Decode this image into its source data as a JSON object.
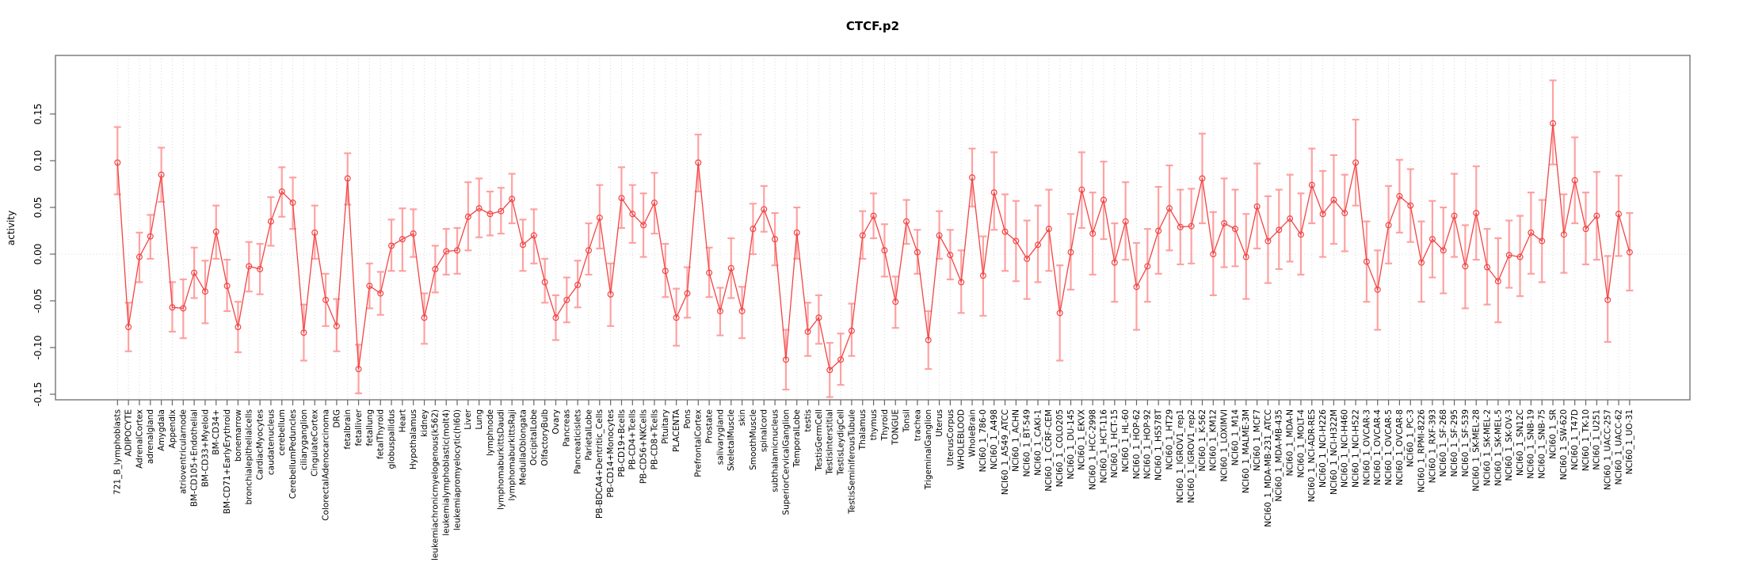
{
  "page": {
    "title": "CTCF.p2"
  },
  "chart_data": {
    "type": "line",
    "subtype": "points-with-error-bars",
    "title": "CTCF.p2",
    "xlabel": "",
    "ylabel": "activity",
    "legend": "none",
    "grid": "vertical dotted line at every category; dotted horizontal line at y=0",
    "ylim": [
      -0.156,
      0.213
    ],
    "yticks": [
      -0.15,
      -0.1,
      -0.05,
      0.0,
      0.05,
      0.1,
      0.15
    ],
    "ytick_labels": [
      "-0.15",
      "-0.10",
      "-0.05",
      "0.00",
      "0.05",
      "0.10",
      "0.15"
    ],
    "series_color": "#f24444",
    "errorbar_color": "#ff9999",
    "grid_color": "#d8d8d8",
    "box_color": "#7f7f7f",
    "categories": [
      "721_B_lymphoblasts",
      "ADIPOCYTE",
      "AdrenalCortex",
      "adrenalgland",
      "Amygdala",
      "Appendix",
      "atrioventricularnode",
      "BM-CD105+Endothelial",
      "BM-CD33+Myeloid",
      "BM-CD34+",
      "BM-CD71+EarlyErythroid",
      "bonemarrow",
      "bronchialepithelialcells",
      "CardiacMyocytes",
      "caudatenucleus",
      "cerebellum",
      "CerebellumPeduncles",
      "ciliaryganglion",
      "CingulateCortex",
      "ColorectalAdenocarcinoma",
      "DRG",
      "fetalbrain",
      "fetalliver",
      "fetallung",
      "fetalThyroid",
      "globuspallidus",
      "Heart",
      "Hypothalamus",
      "kidney",
      "leukemiachronicmyelogenous(k562)",
      "leukemialymphoblastic(molt4)",
      "leukemiapromyelocytic(hl60)",
      "Liver",
      "Lung",
      "lymphnode",
      "lymphomaburkittsDaudi",
      "lymphomaburkittsRaji",
      "MedullaOblongata",
      "OccipitalLobe",
      "OlfactoryBulb",
      "Ovary",
      "Pancreas",
      "Pancreaticislets",
      "ParietalLobe",
      "PB-BDCA4+Dentritic_Cells",
      "PB-CD14+Monocytes",
      "PB-CD19+Bcells",
      "PB-CD4+Tcells",
      "PB-CD56+NKCells",
      "PB-CD8+Tcells",
      "Pituitary",
      "PLACENTA",
      "Pons",
      "PrefrontalCortex",
      "Prostate",
      "salivarygland",
      "SkeletalMuscle",
      "skin",
      "SmoothMuscle",
      "spinalcord",
      "subthalamicnucleus",
      "SuperiorCervicalGanglion",
      "TemporalLobe",
      "testis",
      "TestisGermCell",
      "TestisInterstitial",
      "TestisLeydigCell",
      "TestisSeminiferousTubule",
      "Thalamus",
      "thymus",
      "Thyroid",
      "TONGUE",
      "Tonsil",
      "trachea",
      "TrigeminalGanglion",
      "Uterus",
      "UterusCorpus",
      "WHOLEBLOOD",
      "WholeBrain",
      "NCI60_1_786-0",
      "NCI60_1_A498",
      "NCI60_1_A549_ATCC",
      "NCI60_1_ACHN",
      "NCI60_1_BT-549",
      "NCI60_1_CAKI-1",
      "NCI60_1_CCRF-CEM",
      "NCI60_1_COLO205",
      "NCI60_1_DU-145",
      "NCI60_1_EKVX",
      "NCI60_1_HCC-2998",
      "NCI60_1_HCT-116",
      "NCI60_1_HCT-15",
      "NCI60_1_HL-60",
      "NCI60_1_HOP-62",
      "NCI60_1_HOP-92",
      "NCI60_1_HS578T",
      "NCI60_1_HT29",
      "NCI60_1_IGROV1_rep1",
      "NCI60_1_IGROV1_rep2",
      "NCI60_1_K-562",
      "NCI60_1_KM12",
      "NCI60_1_LOXIMVI",
      "NCI60_1_M14",
      "NCI60_1_MALME-3M",
      "NCI60_1_MCF7",
      "NCI60_1_MDA-MB-231_ATCC",
      "NCI60_1_MDA-MB-435",
      "NCI60_1_MDA-N",
      "NCI60_1_MOLT-4",
      "NCI60_1_NCI-ADR-RES",
      "NCI60_1_NCI-H226",
      "NCI60_1_NCI-H322M",
      "NCI60_1_NCI-H460",
      "NCI60_1_NCI-H522",
      "NCI60_1_OVCAR-3",
      "NCI60_1_OVCAR-4",
      "NCI60_1_OVCAR-5",
      "NCI60_1_OVCAR-8",
      "NCI60_1_PC-3",
      "NCI60_1_RPMI-8226",
      "NCI60_1_RXF-393",
      "NCI60_1_SF-268",
      "NCI60_1_SF-295",
      "NCI60_1_SF-539",
      "NCI60_1_SK-MEL-28",
      "NCI60_1_SK-MEL-2",
      "NCI60_1_SK-MEL-5",
      "NCI60_1_SK-OV-3",
      "NCI60_1_SN12C",
      "NCI60_1_SNB-19",
      "NCI60_1_SNB-75",
      "NCI60_1_SR",
      "NCI60_1_SW-620",
      "NCI60_1_T47D",
      "NCI60_1_TK-10",
      "NCI60_1_U251",
      "NCI60_1_UACC-257",
      "NCI60_1_UACC-62",
      "NCI60_1_UO-31"
    ],
    "values": [
      0.098,
      -0.078,
      -0.003,
      0.019,
      0.085,
      -0.057,
      -0.058,
      -0.02,
      -0.04,
      0.024,
      -0.034,
      -0.078,
      -0.013,
      -0.016,
      0.035,
      0.067,
      0.055,
      -0.084,
      0.023,
      -0.049,
      -0.077,
      0.081,
      -0.123,
      -0.034,
      -0.042,
      0.009,
      0.016,
      0.022,
      -0.068,
      -0.016,
      0.003,
      0.004,
      0.04,
      0.049,
      0.043,
      0.046,
      0.059,
      0.01,
      0.02,
      -0.03,
      -0.068,
      -0.049,
      -0.033,
      0.004,
      0.039,
      -0.043,
      0.06,
      0.043,
      0.031,
      0.055,
      -0.018,
      -0.068,
      -0.042,
      0.098,
      -0.02,
      -0.061,
      -0.015,
      -0.061,
      0.027,
      0.048,
      0.016,
      -0.113,
      0.023,
      -0.083,
      -0.068,
      -0.124,
      -0.113,
      -0.082,
      0.02,
      0.041,
      0.004,
      -0.051,
      0.035,
      0.002,
      -0.092,
      0.02,
      -0.001,
      -0.03,
      0.082,
      -0.023,
      0.066,
      0.024,
      0.014,
      -0.005,
      0.01,
      0.027,
      -0.063,
      0.002,
      0.069,
      0.022,
      0.058,
      -0.009,
      0.035,
      -0.035,
      -0.013,
      0.025,
      0.049,
      0.029,
      0.03,
      0.081,
      0.0,
      0.033,
      0.027,
      -0.003,
      0.051,
      0.014,
      0.026,
      0.038,
      0.021,
      0.074,
      0.043,
      0.058,
      0.044,
      0.098,
      -0.008,
      -0.038,
      0.031,
      0.062,
      0.052,
      -0.009,
      0.016,
      0.004,
      0.041,
      -0.013,
      0.044,
      -0.014,
      -0.029,
      -0.001,
      -0.003,
      0.023,
      0.014,
      0.14,
      0.021,
      0.079,
      0.027,
      0.041,
      -0.049,
      0.043,
      0.002
    ],
    "err_lo": [
      0.064,
      -0.104,
      -0.03,
      -0.005,
      0.056,
      -0.083,
      -0.09,
      -0.047,
      -0.074,
      -0.005,
      -0.061,
      -0.105,
      -0.04,
      -0.043,
      0.009,
      0.04,
      0.027,
      -0.114,
      -0.005,
      -0.077,
      -0.104,
      0.053,
      -0.149,
      -0.058,
      -0.065,
      -0.018,
      -0.018,
      -0.003,
      -0.096,
      -0.041,
      -0.022,
      -0.021,
      0.004,
      0.018,
      0.02,
      0.022,
      0.033,
      -0.018,
      -0.01,
      -0.052,
      -0.092,
      -0.073,
      -0.057,
      -0.022,
      0.006,
      -0.077,
      0.028,
      0.012,
      -0.003,
      0.022,
      -0.046,
      -0.098,
      -0.068,
      0.067,
      -0.046,
      -0.087,
      -0.047,
      -0.09,
      0.0,
      0.024,
      -0.012,
      -0.145,
      -0.005,
      -0.109,
      -0.096,
      -0.153,
      -0.14,
      -0.109,
      -0.005,
      0.017,
      -0.024,
      -0.079,
      0.011,
      -0.021,
      -0.123,
      -0.005,
      -0.027,
      -0.063,
      0.051,
      -0.066,
      0.026,
      -0.018,
      -0.029,
      -0.048,
      -0.03,
      -0.018,
      -0.114,
      -0.038,
      0.028,
      -0.022,
      0.016,
      -0.051,
      -0.006,
      -0.081,
      -0.051,
      -0.021,
      0.004,
      -0.011,
      -0.01,
      0.033,
      -0.044,
      -0.014,
      -0.013,
      -0.048,
      0.006,
      -0.031,
      -0.016,
      -0.008,
      -0.022,
      0.033,
      -0.003,
      0.011,
      0.003,
      0.052,
      -0.051,
      -0.081,
      -0.01,
      0.023,
      0.013,
      -0.051,
      -0.025,
      -0.042,
      -0.003,
      -0.058,
      -0.006,
      -0.054,
      -0.073,
      -0.036,
      -0.045,
      -0.021,
      -0.03,
      0.096,
      -0.02,
      0.033,
      -0.011,
      -0.006,
      -0.094,
      -0.002,
      -0.039
    ],
    "err_hi": [
      0.136,
      -0.052,
      0.023,
      0.042,
      0.114,
      -0.03,
      -0.027,
      0.007,
      -0.007,
      0.052,
      -0.006,
      -0.051,
      0.013,
      0.011,
      0.061,
      0.093,
      0.082,
      -0.054,
      0.052,
      -0.021,
      -0.048,
      0.108,
      -0.097,
      -0.01,
      -0.019,
      0.037,
      0.049,
      0.048,
      -0.042,
      0.009,
      0.027,
      0.028,
      0.077,
      0.081,
      0.067,
      0.071,
      0.086,
      0.037,
      0.048,
      -0.005,
      -0.044,
      -0.025,
      -0.007,
      0.033,
      0.074,
      -0.01,
      0.093,
      0.074,
      0.065,
      0.087,
      0.011,
      -0.037,
      -0.014,
      0.128,
      0.007,
      -0.036,
      0.017,
      -0.035,
      0.054,
      0.073,
      0.044,
      -0.081,
      0.05,
      -0.052,
      -0.044,
      -0.095,
      -0.085,
      -0.053,
      0.046,
      0.065,
      0.032,
      -0.024,
      0.058,
      0.026,
      -0.061,
      0.046,
      0.026,
      0.004,
      0.113,
      0.019,
      0.109,
      0.064,
      0.057,
      0.036,
      0.052,
      0.069,
      -0.012,
      0.043,
      0.109,
      0.066,
      0.099,
      0.033,
      0.077,
      0.012,
      0.027,
      0.072,
      0.095,
      0.069,
      0.07,
      0.129,
      0.045,
      0.081,
      0.069,
      0.043,
      0.097,
      0.062,
      0.069,
      0.085,
      0.065,
      0.113,
      0.089,
      0.106,
      0.085,
      0.144,
      0.035,
      0.004,
      0.073,
      0.101,
      0.091,
      0.035,
      0.057,
      0.05,
      0.086,
      0.031,
      0.094,
      0.027,
      0.017,
      0.036,
      0.041,
      0.066,
      0.058,
      0.186,
      0.064,
      0.125,
      0.066,
      0.088,
      -0.002,
      0.084,
      0.044
    ]
  }
}
